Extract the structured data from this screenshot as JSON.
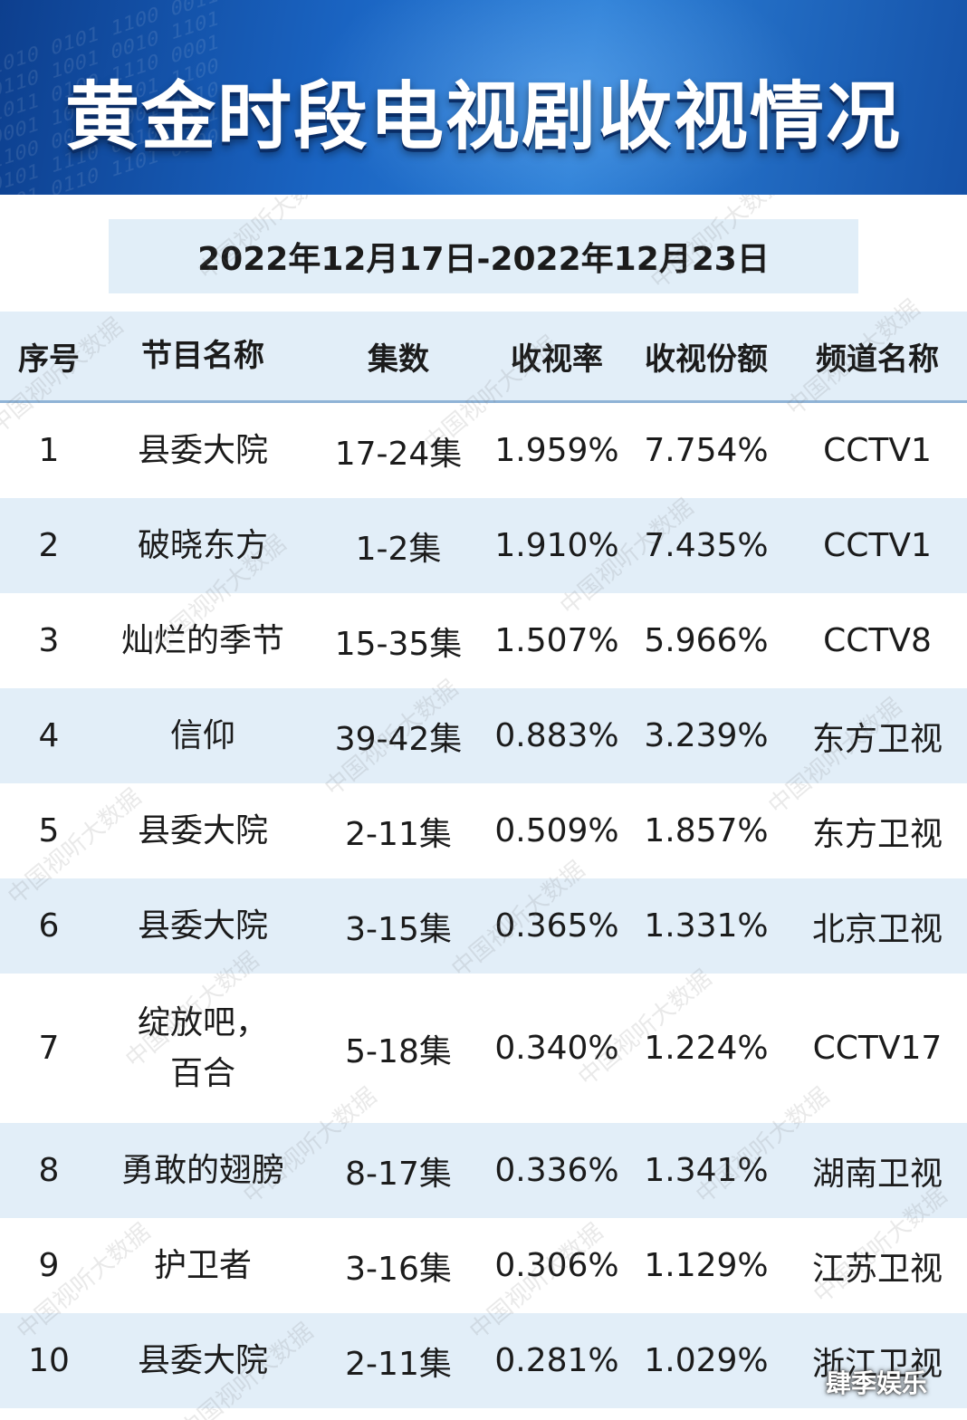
{
  "title": "黄金时段电视剧收视情况",
  "date_range": "2022年12月17日-2022年12月23日",
  "watermark_text": "中国视听大数据",
  "corner_mark": "肆季娱乐",
  "chart_data": {
    "type": "table",
    "title": "黄金时段电视剧收视情况",
    "subtitle": "2022年12月17日-2022年12月23日",
    "columns": [
      "序号",
      "节目名称",
      "集数",
      "收视率",
      "收视份额",
      "频道名称"
    ],
    "rows": [
      {
        "rank": "1",
        "name": "县委大院",
        "episodes": "17-24集",
        "rating": "1.959%",
        "share": "7.754%",
        "channel": "CCTV1"
      },
      {
        "rank": "2",
        "name": "破晓东方",
        "episodes": "1-2集",
        "rating": "1.910%",
        "share": "7.435%",
        "channel": "CCTV1"
      },
      {
        "rank": "3",
        "name": "灿烂的季节",
        "episodes": "15-35集",
        "rating": "1.507%",
        "share": "5.966%",
        "channel": "CCTV8"
      },
      {
        "rank": "4",
        "name": "信仰",
        "episodes": "39-42集",
        "rating": "0.883%",
        "share": "3.239%",
        "channel": "东方卫视"
      },
      {
        "rank": "5",
        "name": "县委大院",
        "episodes": "2-11集",
        "rating": "0.509%",
        "share": "1.857%",
        "channel": "东方卫视"
      },
      {
        "rank": "6",
        "name": "县委大院",
        "episodes": "3-15集",
        "rating": "0.365%",
        "share": "1.331%",
        "channel": "北京卫视"
      },
      {
        "rank": "7",
        "name": "绽放吧，",
        "name2": "百合",
        "episodes": "5-18集",
        "rating": "0.340%",
        "share": "1.224%",
        "channel": "CCTV17"
      },
      {
        "rank": "8",
        "name": "勇敢的翅膀",
        "episodes": "8-17集",
        "rating": "0.336%",
        "share": "1.341%",
        "channel": "湖南卫视"
      },
      {
        "rank": "9",
        "name": "护卫者",
        "episodes": "3-16集",
        "rating": "0.306%",
        "share": "1.129%",
        "channel": "江苏卫视"
      },
      {
        "rank": "10",
        "name": "县委大院",
        "episodes": "2-11集",
        "rating": "0.281%",
        "share": "1.029%",
        "channel": "浙江卫视"
      }
    ]
  },
  "colors": {
    "banner_dark": "#0d3f8e",
    "banner_light": "#2b7ed6",
    "row_alt": "#e2eef8",
    "header_rule": "#8fb3d6",
    "text": "#1b1b1b"
  }
}
